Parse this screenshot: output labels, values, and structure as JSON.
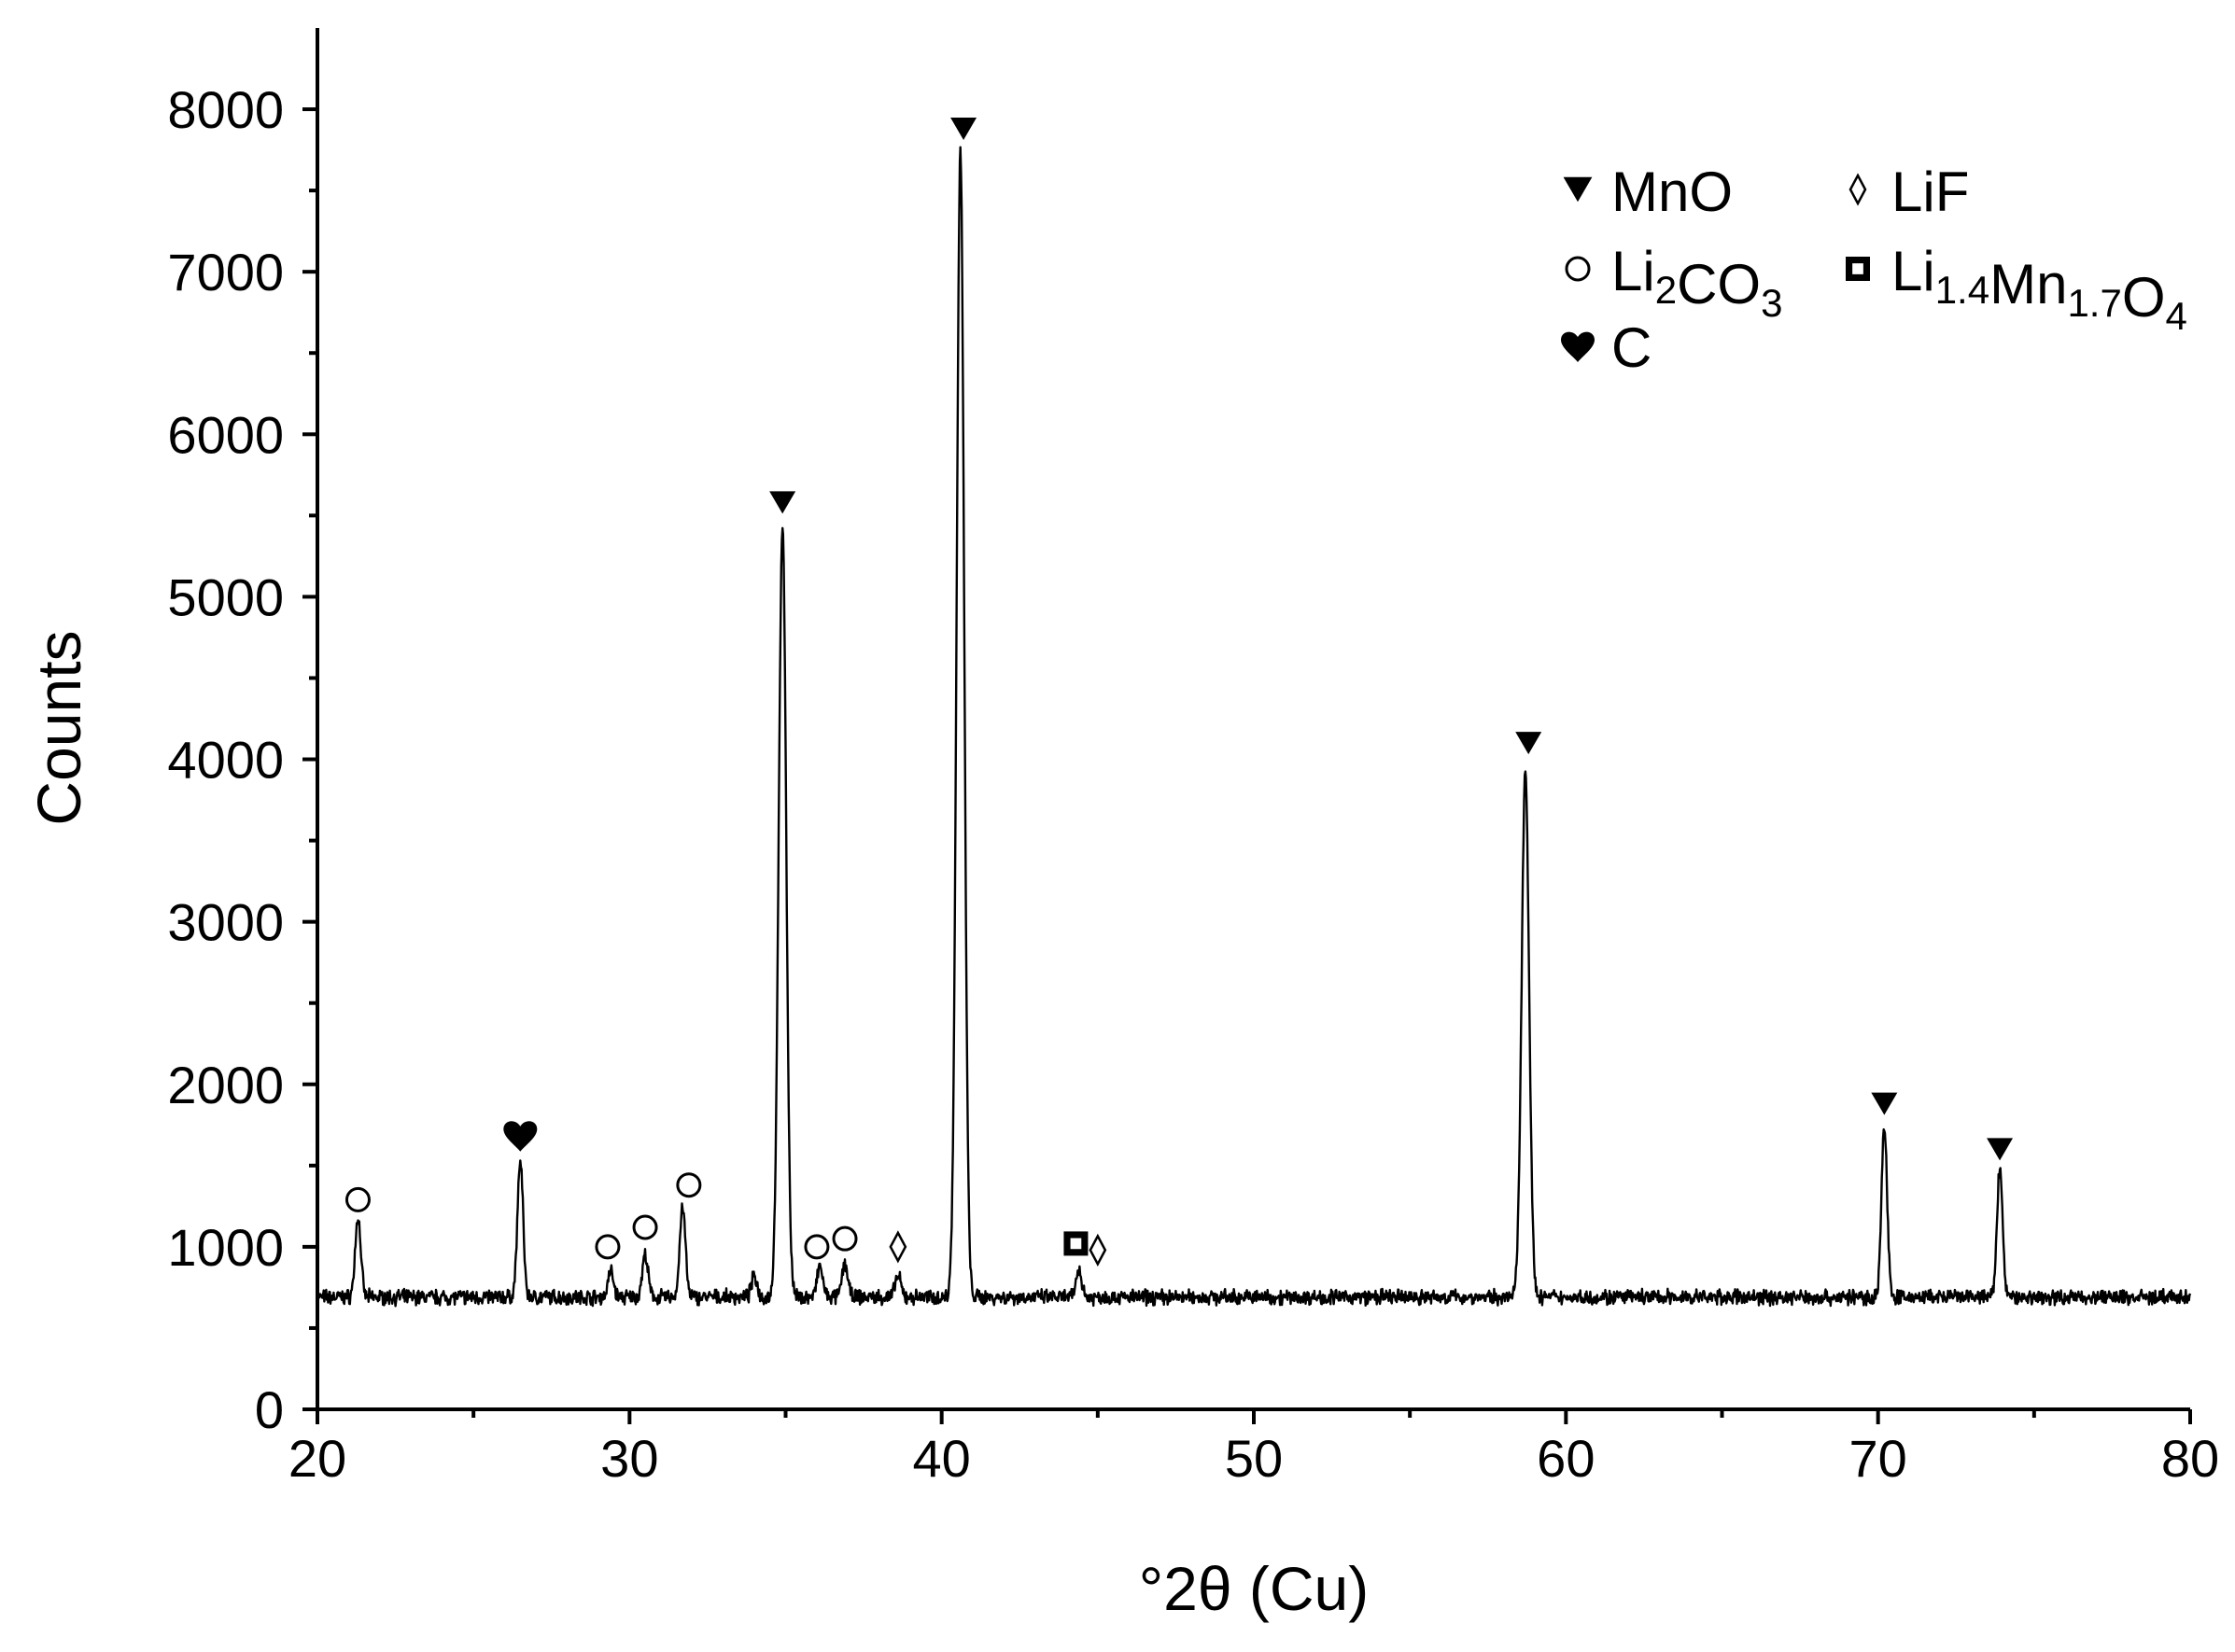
{
  "chart_data": {
    "type": "line",
    "xlabel": "°2θ (Cu)",
    "ylabel": "Counts",
    "xlim": [
      20,
      80
    ],
    "ylim": [
      0,
      8500
    ],
    "x_ticks": [
      20,
      30,
      40,
      50,
      60,
      70,
      80
    ],
    "y_ticks": [
      0,
      1000,
      2000,
      3000,
      4000,
      5000,
      6000,
      7000,
      8000
    ],
    "x_tick_labels": [
      "20",
      "30",
      "40",
      "50",
      "60",
      "70",
      "80"
    ],
    "y_tick_labels": [
      "0",
      "1000",
      "2000",
      "3000",
      "4000",
      "5000",
      "6000",
      "7000",
      "8000"
    ],
    "grid": false,
    "baseline_counts": 690,
    "series": [
      {
        "peaks": [
          {
            "x": 21.3,
            "y": 1180
          },
          {
            "x": 26.5,
            "y": 1530
          },
          {
            "x": 29.4,
            "y": 850
          },
          {
            "x": 30.5,
            "y": 950
          },
          {
            "x": 31.7,
            "y": 1250
          },
          {
            "x": 34.0,
            "y": 820
          },
          {
            "x": 34.9,
            "y": 5450
          },
          {
            "x": 36.1,
            "y": 880
          },
          {
            "x": 36.9,
            "y": 900
          },
          {
            "x": 38.6,
            "y": 820
          },
          {
            "x": 40.6,
            "y": 7750
          },
          {
            "x": 44.4,
            "y": 860
          },
          {
            "x": 58.7,
            "y": 3930
          },
          {
            "x": 70.2,
            "y": 1740
          },
          {
            "x": 73.9,
            "y": 1480
          }
        ]
      }
    ],
    "annotations": [
      {
        "phase": "Li2CO3",
        "marker": "circle-open",
        "x": 21.3,
        "y": 1290
      },
      {
        "phase": "C",
        "marker": "heart",
        "x": 26.5,
        "y": 1690
      },
      {
        "phase": "Li2CO3",
        "marker": "circle-open",
        "x": 29.3,
        "y": 1000
      },
      {
        "phase": "Li2CO3",
        "marker": "circle-open",
        "x": 30.5,
        "y": 1120
      },
      {
        "phase": "Li2CO3",
        "marker": "circle-open",
        "x": 31.9,
        "y": 1380
      },
      {
        "phase": "MnO",
        "marker": "triangle-down",
        "x": 34.9,
        "y": 5580
      },
      {
        "phase": "Li2CO3",
        "marker": "circle-open",
        "x": 36.0,
        "y": 1000
      },
      {
        "phase": "Li2CO3",
        "marker": "circle-open",
        "x": 36.9,
        "y": 1050
      },
      {
        "phase": "LiF",
        "marker": "diamond-open",
        "x": 38.6,
        "y": 1000
      },
      {
        "phase": "MnO",
        "marker": "triangle-down",
        "x": 40.7,
        "y": 7880
      },
      {
        "phase": "Li1.4Mn1.7O4",
        "marker": "square-dot",
        "x": 44.3,
        "y": 1020
      },
      {
        "phase": "LiF",
        "marker": "diamond-open",
        "x": 45.0,
        "y": 980
      },
      {
        "phase": "MnO",
        "marker": "triangle-down",
        "x": 58.8,
        "y": 4100
      },
      {
        "phase": "MnO",
        "marker": "triangle-down",
        "x": 70.2,
        "y": 1880
      },
      {
        "phase": "MnO",
        "marker": "triangle-down",
        "x": 73.9,
        "y": 1600
      }
    ],
    "legend": {
      "placement": "top-right",
      "entries": [
        {
          "marker": "triangle-down",
          "label": "MnO",
          "label_parts": [
            {
              "t": "MnO",
              "sub": false
            }
          ]
        },
        {
          "marker": "diamond-open",
          "label": "LiF",
          "label_parts": [
            {
              "t": "LiF",
              "sub": false
            }
          ]
        },
        {
          "marker": "circle-open",
          "label": "Li2CO3",
          "label_parts": [
            {
              "t": "Li",
              "sub": false
            },
            {
              "t": "2",
              "sub": true
            },
            {
              "t": "CO",
              "sub": false
            },
            {
              "t": "3",
              "sub": true
            }
          ]
        },
        {
          "marker": "square-dot",
          "label": "Li1.4Mn1.7O4",
          "label_parts": [
            {
              "t": "Li",
              "sub": false
            },
            {
              "t": "1.4",
              "sub": true
            },
            {
              "t": "Mn",
              "sub": false
            },
            {
              "t": "1.7",
              "sub": true
            },
            {
              "t": "O",
              "sub": false
            },
            {
              "t": "4",
              "sub": true
            }
          ]
        },
        {
          "marker": "heart",
          "label": "C",
          "label_parts": [
            {
              "t": "C",
              "sub": false
            }
          ]
        }
      ]
    }
  }
}
